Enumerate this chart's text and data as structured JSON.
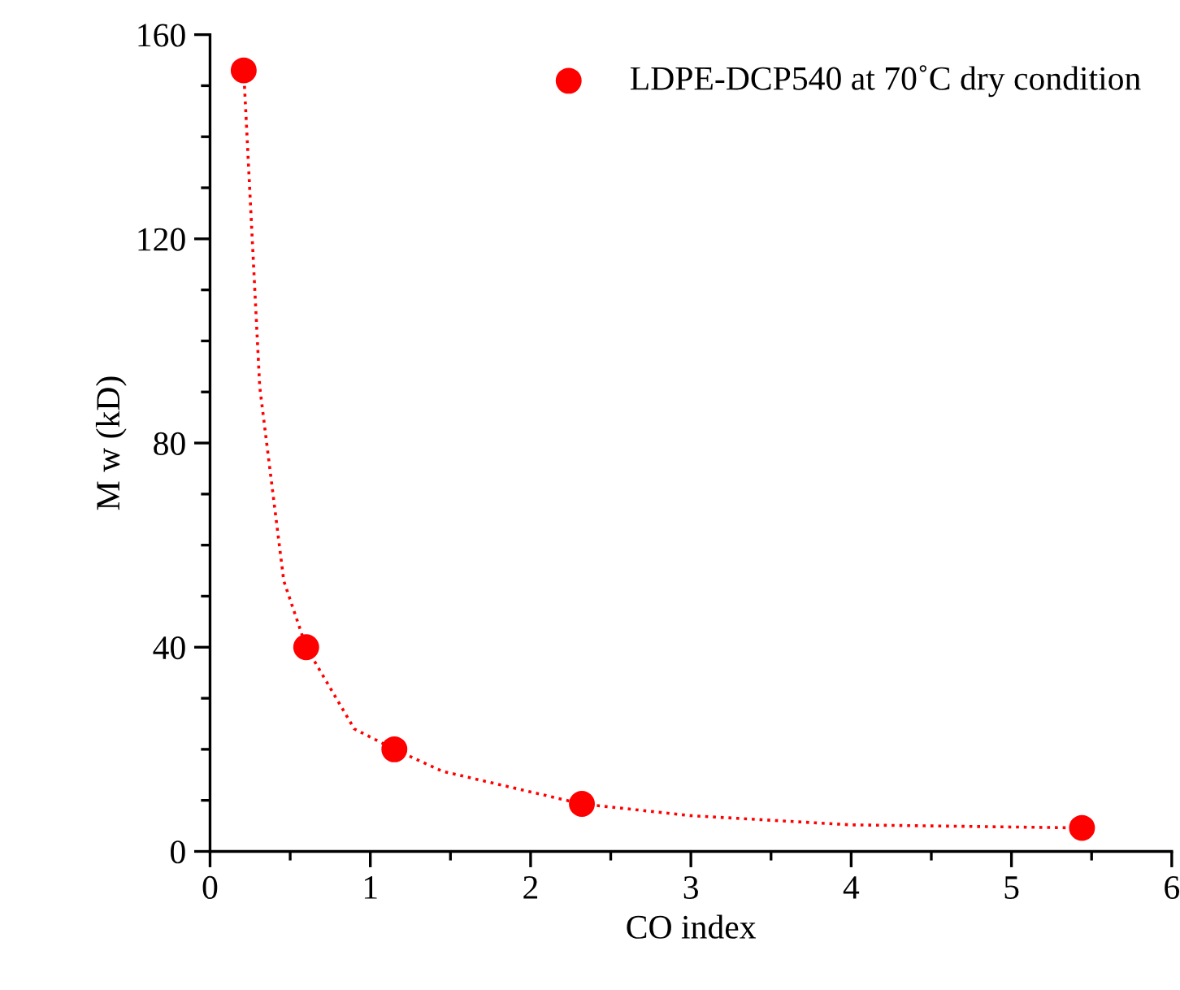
{
  "chart_data": {
    "type": "scatter",
    "xlabel": "CO index",
    "ylabel": "M w (kD)",
    "xlim": [
      0,
      6
    ],
    "xticks": [
      0,
      1,
      2,
      3,
      4,
      5,
      6
    ],
    "ylim": [
      0,
      160
    ],
    "yticks": [
      0,
      40,
      80,
      120,
      160
    ],
    "grid": false,
    "legend": "top right",
    "series": [
      {
        "type": "line",
        "color": "#ff0000",
        "line_style": "dotted",
        "marker": "none",
        "x": [
          0.21,
          0.31,
          0.46,
          0.6,
          0.9,
          1.15,
          1.45,
          2.32,
          3.0,
          4.0,
          5.44
        ],
        "values": [
          153,
          91,
          53,
          40,
          24,
          20,
          15.7,
          9.3,
          7,
          5.2,
          4.6
        ]
      },
      {
        "name": "LDPE-DCP540 at 70˚C dry condition",
        "color": "#ff0000",
        "marker": "circle",
        "x": [
          0.21,
          0.6,
          1.15,
          2.32,
          5.44
        ],
        "values": [
          153,
          40,
          20,
          9.3,
          4.6
        ]
      }
    ]
  }
}
